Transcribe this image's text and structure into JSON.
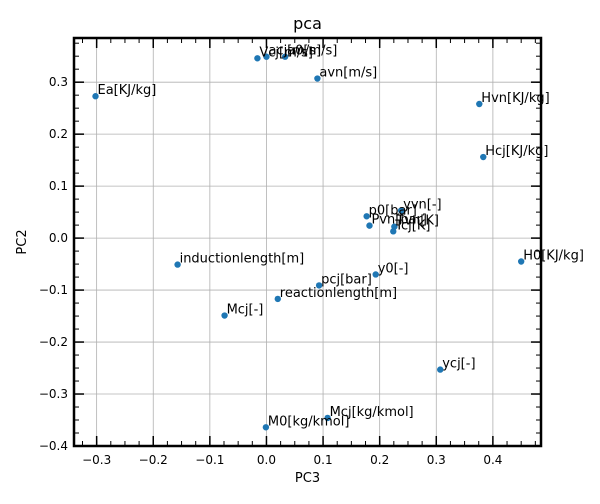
{
  "chart_data": {
    "type": "scatter",
    "title": "pca",
    "xlabel": "PC3",
    "ylabel": "PC2",
    "xlim": [
      -0.34,
      0.485
    ],
    "ylim": [
      -0.4,
      0.385
    ],
    "xticks": [
      -0.3,
      -0.2,
      -0.1,
      0.0,
      0.1,
      0.2,
      0.3,
      0.4
    ],
    "xtick_labels": [
      "−0.3",
      "−0.2",
      "−0.1",
      "0.0",
      "0.1",
      "0.2",
      "0.3",
      "0.4"
    ],
    "yticks": [
      -0.4,
      -0.3,
      -0.2,
      -0.1,
      0.0,
      0.1,
      0.2,
      0.3
    ],
    "ytick_labels": [
      "−0.4",
      "−0.3",
      "−0.2",
      "−0.1",
      "0.0",
      "0.1",
      "0.2",
      "0.3"
    ],
    "grid": true,
    "point_color": "#1f77b4",
    "points": [
      {
        "label": "Vcj[m/s]",
        "x": -0.016,
        "y": 0.346
      },
      {
        "label": "acj[m/s]",
        "x": 0.0,
        "y": 0.349
      },
      {
        "label": "a0[m/s]",
        "x": 0.033,
        "y": 0.349
      },
      {
        "label": "avn[m/s]",
        "x": 0.09,
        "y": 0.307
      },
      {
        "label": "Ea[KJ/kg]",
        "x": -0.302,
        "y": 0.273
      },
      {
        "label": "Hvn[KJ/kg]",
        "x": 0.376,
        "y": 0.258
      },
      {
        "label": "Hcj[KJ/kg]",
        "x": 0.383,
        "y": 0.156
      },
      {
        "label": "yvn[-]",
        "x": 0.238,
        "y": 0.053
      },
      {
        "label": "p0[bar]",
        "x": 0.177,
        "y": 0.042
      },
      {
        "label": "Pvn[bar]",
        "x": 0.182,
        "y": 0.024
      },
      {
        "label": "Tvn[K]",
        "x": 0.226,
        "y": 0.022
      },
      {
        "label": "Tcj[K]",
        "x": 0.224,
        "y": 0.013
      },
      {
        "label": "H0[KJ/kg]",
        "x": 0.45,
        "y": -0.045
      },
      {
        "label": "inductionlength[m]",
        "x": -0.157,
        "y": -0.051
      },
      {
        "label": "y0[-]",
        "x": 0.193,
        "y": -0.07
      },
      {
        "label": "pcj[bar]",
        "x": 0.093,
        "y": -0.091
      },
      {
        "label": "reactionlength[m]",
        "x": 0.02,
        "y": -0.117
      },
      {
        "label": "Mcj[-]",
        "x": -0.074,
        "y": -0.149
      },
      {
        "label": "ycj[-]",
        "x": 0.307,
        "y": -0.253
      },
      {
        "label": "Mcj[kg/kmol]",
        "x": 0.108,
        "y": -0.346
      },
      {
        "label": "M0[kg/kmol]",
        "x": -0.001,
        "y": -0.364
      }
    ]
  }
}
